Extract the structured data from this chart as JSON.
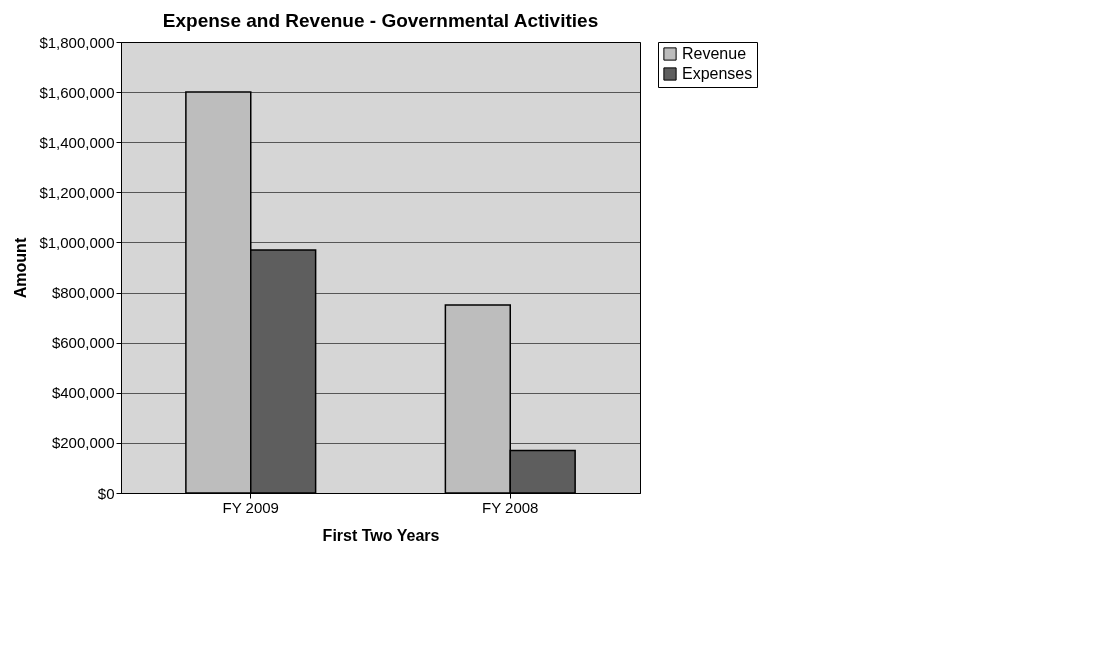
{
  "chart_data": {
    "type": "bar",
    "title": "Expense and Revenue - Governmental Activities",
    "xlabel": "First Two Years",
    "ylabel": "Amount",
    "categories": [
      "FY 2009",
      "FY 2008"
    ],
    "series": [
      {
        "name": "Revenue",
        "color": "#bdbdbd",
        "values": [
          1600000,
          750000
        ]
      },
      {
        "name": "Expenses",
        "color": "#5e5e5e",
        "values": [
          970000,
          170000
        ]
      }
    ],
    "ylim": [
      0,
      1800000
    ],
    "yticks": [
      {
        "value": 0,
        "label": "$0"
      },
      {
        "value": 200000,
        "label": "$200,000"
      },
      {
        "value": 400000,
        "label": "$400,000"
      },
      {
        "value": 600000,
        "label": "$600,000"
      },
      {
        "value": 800000,
        "label": "$800,000"
      },
      {
        "value": 1000000,
        "label": "$1,000,000"
      },
      {
        "value": 1200000,
        "label": "$1,200,000"
      },
      {
        "value": 1400000,
        "label": "$1,400,000"
      },
      {
        "value": 1600000,
        "label": "$1,600,000"
      },
      {
        "value": 1800000,
        "label": "$1,800,000"
      }
    ],
    "grid": "y",
    "legend": "right"
  }
}
